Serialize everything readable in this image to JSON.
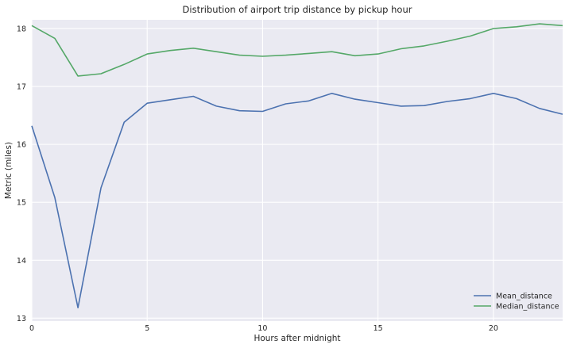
{
  "chart_data": {
    "type": "line",
    "title": "Distribution of airport trip distance by pickup hour",
    "xlabel": "Hours after midnight",
    "ylabel": "Metric (miles)",
    "xlim": [
      0,
      23
    ],
    "ylim": [
      12.95,
      18.15
    ],
    "xticks": [
      0,
      5,
      10,
      15,
      20
    ],
    "yticks": [
      13,
      14,
      15,
      16,
      17,
      18
    ],
    "grid": true,
    "legend_position": "lower-right",
    "x": [
      0,
      1,
      2,
      3,
      4,
      5,
      6,
      7,
      8,
      9,
      10,
      11,
      12,
      13,
      14,
      15,
      16,
      17,
      18,
      19,
      20,
      21,
      22,
      23
    ],
    "series": [
      {
        "name": "Mean_distance",
        "color": "#4c72b0",
        "values": [
          16.32,
          15.08,
          13.18,
          15.25,
          16.38,
          16.71,
          16.77,
          16.83,
          16.66,
          16.58,
          16.57,
          16.7,
          16.75,
          16.88,
          16.78,
          16.72,
          16.66,
          16.67,
          16.74,
          16.79,
          16.88,
          16.79,
          16.62,
          16.52
        ]
      },
      {
        "name": "Median_distance",
        "color": "#55a868",
        "values": [
          18.05,
          17.83,
          17.18,
          17.22,
          17.38,
          17.56,
          17.62,
          17.66,
          17.6,
          17.54,
          17.52,
          17.54,
          17.57,
          17.6,
          17.53,
          17.56,
          17.65,
          17.7,
          17.78,
          17.87,
          18.0,
          18.03,
          18.08,
          18.05
        ]
      }
    ],
    "background_color": "#eaeaf2",
    "grid_color": "#ffffff"
  }
}
